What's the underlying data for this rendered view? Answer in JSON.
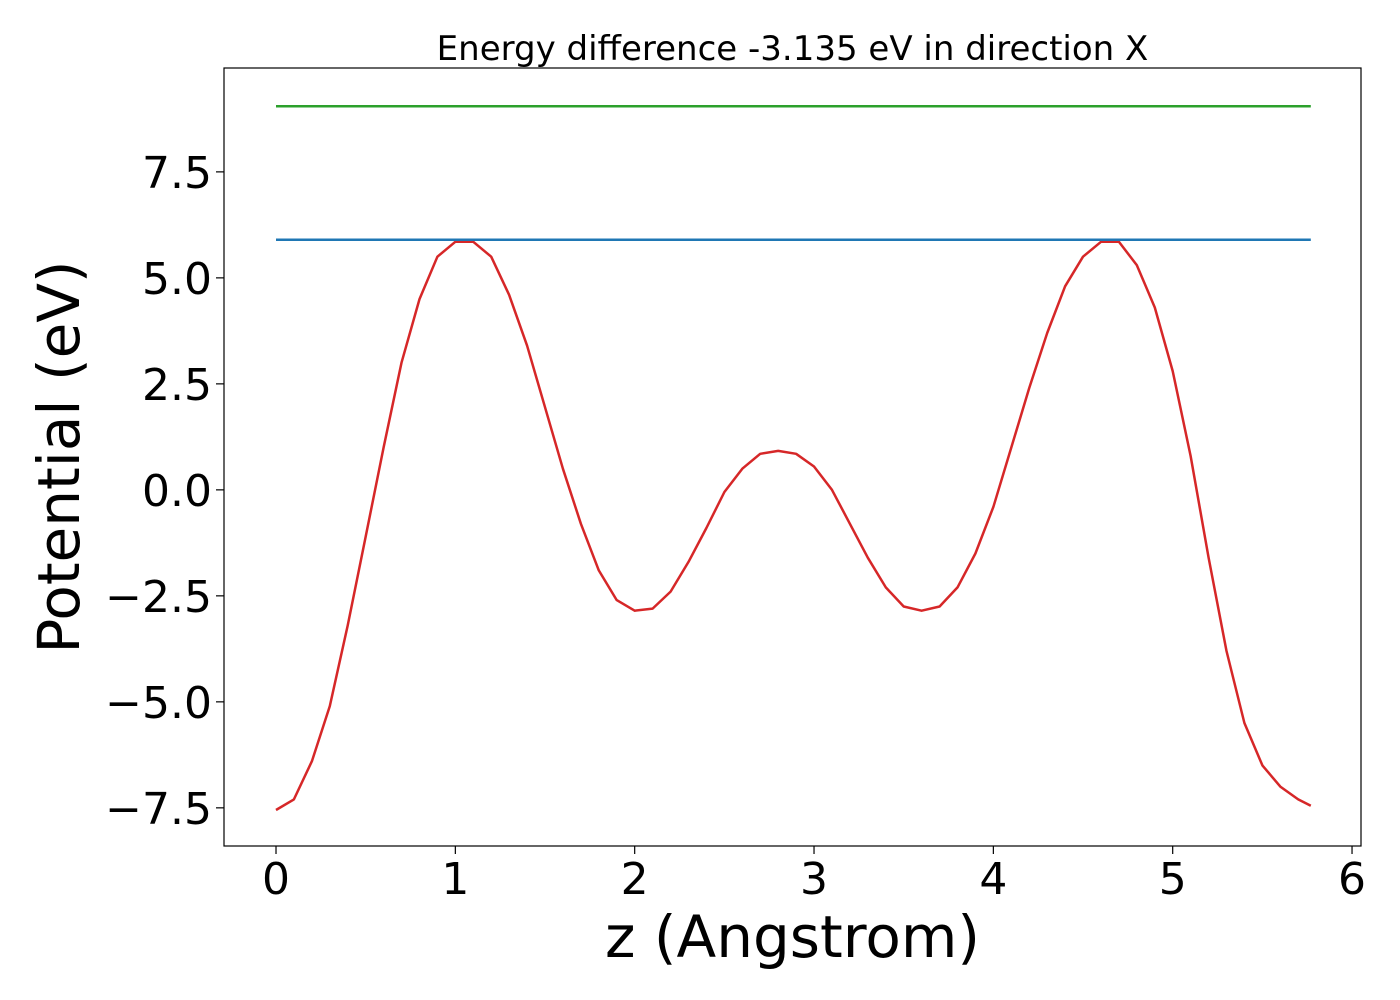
{
  "chart_data": {
    "type": "line",
    "title": "Energy difference -3.135 eV in direction X",
    "xlabel": "z (Angstrom)",
    "ylabel": "Potential (eV)",
    "xlim": [
      -0.29,
      6.05
    ],
    "ylim": [
      -8.4,
      9.95
    ],
    "xticks": [
      0,
      1,
      2,
      3,
      4,
      5,
      6
    ],
    "xtick_labels": [
      "0",
      "1",
      "2",
      "3",
      "4",
      "5",
      "6"
    ],
    "yticks": [
      -7.5,
      -5.0,
      -2.5,
      0.0,
      2.5,
      5.0,
      7.5
    ],
    "ytick_labels": [
      "−7.5",
      "−5.0",
      "−2.5",
      "0.0",
      "2.5",
      "5.0",
      "7.5"
    ],
    "grid": false,
    "series": [
      {
        "color": "#d62728",
        "x": [
          0.0,
          0.1,
          0.2,
          0.3,
          0.4,
          0.5,
          0.6,
          0.7,
          0.8,
          0.9,
          1.0,
          1.1,
          1.2,
          1.3,
          1.4,
          1.5,
          1.6,
          1.7,
          1.8,
          1.9,
          2.0,
          2.1,
          2.2,
          2.3,
          2.4,
          2.5,
          2.6,
          2.7,
          2.8,
          2.9,
          3.0,
          3.1,
          3.2,
          3.3,
          3.4,
          3.5,
          3.6,
          3.7,
          3.8,
          3.9,
          4.0,
          4.1,
          4.2,
          4.3,
          4.4,
          4.5,
          4.6,
          4.7,
          4.8,
          4.9,
          5.0,
          5.1,
          5.2,
          5.3,
          5.4,
          5.5,
          5.6,
          5.7,
          5.77
        ],
        "y": [
          -7.55,
          -7.3,
          -6.4,
          -5.1,
          -3.2,
          -1.1,
          1.0,
          3.0,
          4.5,
          5.5,
          5.85,
          5.85,
          5.5,
          4.6,
          3.4,
          1.95,
          0.5,
          -0.8,
          -1.9,
          -2.6,
          -2.85,
          -2.8,
          -2.4,
          -1.7,
          -0.9,
          -0.05,
          0.5,
          0.85,
          0.92,
          0.85,
          0.55,
          0.0,
          -0.8,
          -1.6,
          -2.3,
          -2.75,
          -2.85,
          -2.75,
          -2.3,
          -1.5,
          -0.4,
          1.0,
          2.4,
          3.7,
          4.8,
          5.5,
          5.85,
          5.85,
          5.3,
          4.3,
          2.8,
          0.8,
          -1.6,
          -3.8,
          -5.5,
          -6.5,
          -7.0,
          -7.3,
          -7.45
        ]
      },
      {
        "color": "#1f77b4",
        "x": [
          0.0,
          5.77
        ],
        "y": [
          5.9,
          5.9
        ]
      },
      {
        "color": "#2ca02c",
        "x": [
          0.0,
          5.77
        ],
        "y": [
          9.05,
          9.05
        ]
      }
    ]
  }
}
